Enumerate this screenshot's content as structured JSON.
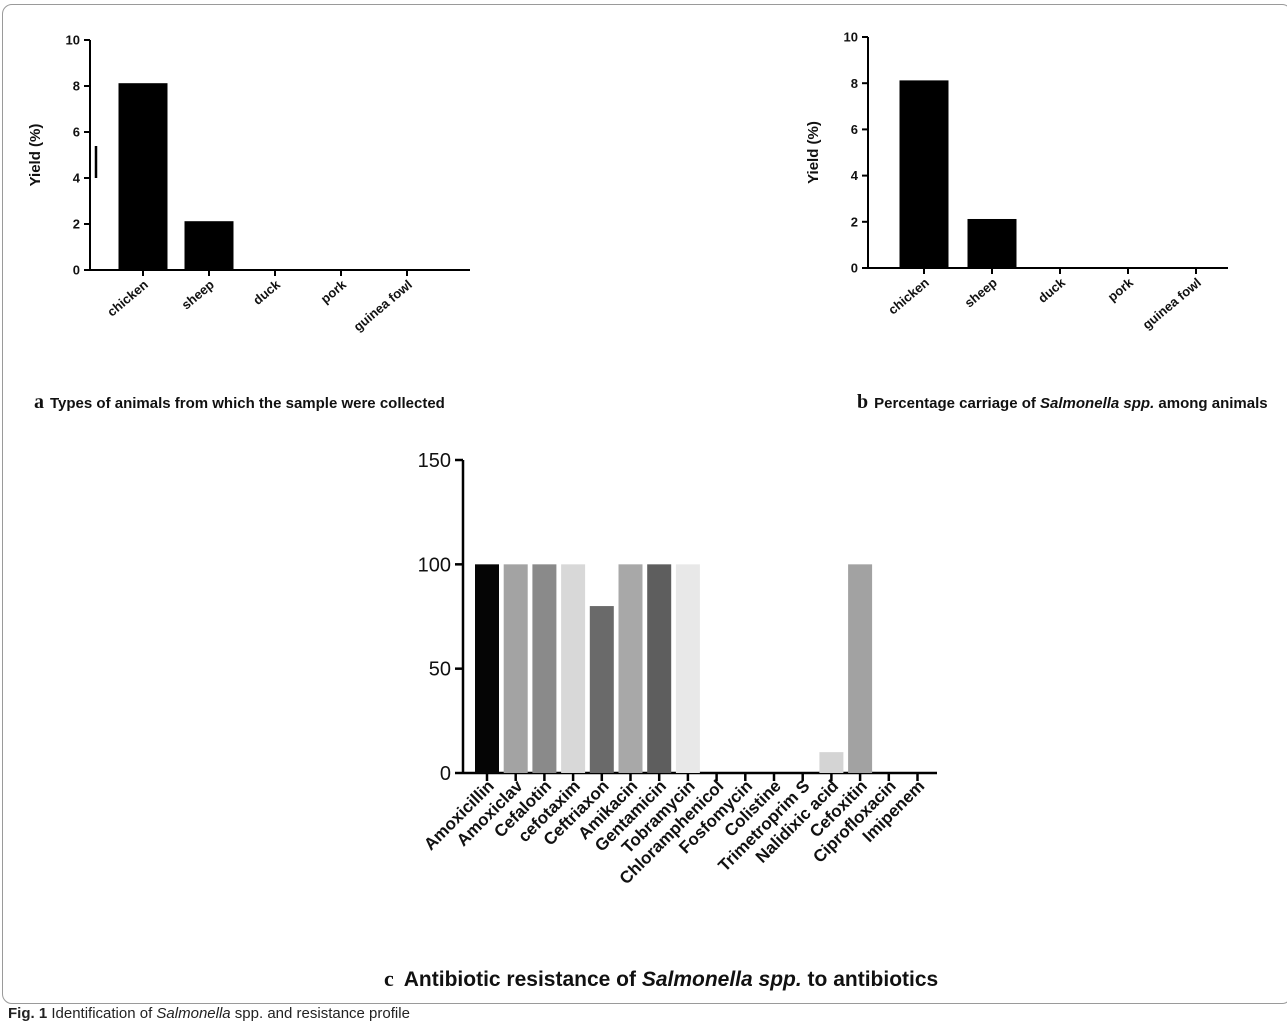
{
  "chart_data": [
    {
      "panel": "a",
      "type": "bar",
      "categories": [
        "chicken",
        "sheep",
        "duck",
        "pork",
        "guinea fowl"
      ],
      "values": [
        8.1,
        2.1,
        0,
        0,
        0
      ],
      "ylabel": "Yield (%)",
      "ylim": [
        0,
        10
      ],
      "yticks": [
        "0",
        "2",
        "4",
        "6",
        "8",
        "10"
      ],
      "caption": "Types of animals from which the sample were collected",
      "bar_color": "#000000"
    },
    {
      "panel": "b",
      "type": "bar",
      "categories": [
        "chicken",
        "sheep",
        "duck",
        "pork",
        "guinea fowl"
      ],
      "values": [
        8.1,
        2.1,
        0,
        0,
        0
      ],
      "ylabel": "Yield (%)",
      "ylim": [
        0,
        10
      ],
      "yticks": [
        "0",
        "2",
        "4",
        "6",
        "8",
        "10"
      ],
      "caption_prefix": "Percentage carriage of ",
      "caption_italic": "Salmonella spp.",
      "caption_suffix": " among animals",
      "bar_color": "#000000"
    },
    {
      "panel": "c",
      "type": "bar",
      "categories": [
        "Amoxicillin",
        "Amoxiclav",
        "Cefalotin",
        "cefotaxim",
        "Ceftriaxon",
        "Amikacin",
        "Gentamicin",
        "Tobramycin",
        "Chloramphenicol",
        "Fosfomycin",
        "Colistine",
        "Trimetroprim S",
        "Nalidixic acid",
        "Cefoxitin",
        "Ciprofloxacin",
        "Imipenem"
      ],
      "values": [
        100,
        100,
        100,
        100,
        80,
        100,
        100,
        100,
        0,
        0,
        0,
        0,
        10,
        100,
        0,
        0
      ],
      "bar_colors": [
        "#050505",
        "#a3a3a3",
        "#8a8a8a",
        "#d8d8d8",
        "#6a6a6a",
        "#a8a8a8",
        "#5e5e5e",
        "#e8e8e8",
        "#888888",
        "#888888",
        "#888888",
        "#888888",
        "#d4d4d4",
        "#a2a2a2",
        "#888888",
        "#888888"
      ],
      "ylim": [
        0,
        150
      ],
      "yticks": [
        "0",
        "50",
        "100",
        "150"
      ],
      "caption_prefix": "Antibiotic resistance of ",
      "caption_italic": "Salmonella spp.",
      "caption_suffix": " to antibiotics"
    }
  ],
  "captions": {
    "letter_a": "a",
    "letter_b": "b",
    "letter_c": "c",
    "figure_label": "Fig. 1",
    "figure_text_prefix": "Identification of ",
    "figure_text_italic": "Salmonella",
    "figure_text_suffix": " spp. and resistance profile"
  }
}
